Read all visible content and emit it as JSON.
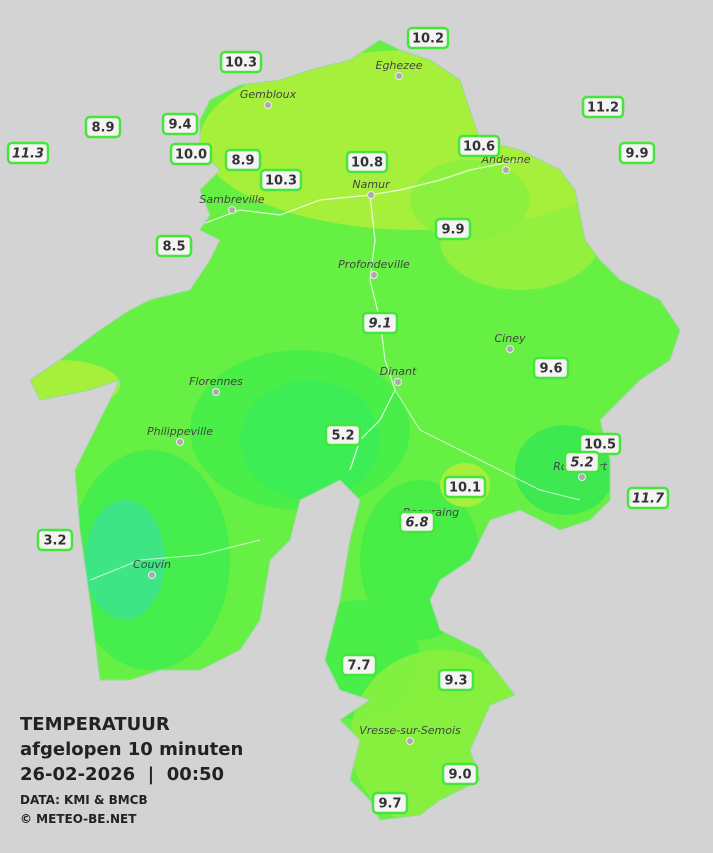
{
  "legend": {
    "title": "TEMPERATUUR",
    "subtitle": "afgelopen 10 minuten",
    "datetime": "26-02-2026  |  00:50",
    "source": "DATA: KMI & BMCB",
    "copyright": "© METEO-BE.NET"
  },
  "towns": [
    "Eghezee",
    "Gembloux",
    "Andenne",
    "Namur",
    "Sambreville",
    "Profondeville",
    "Ciney",
    "Dinant",
    "Florennes",
    "Philippeville",
    "Rochefort",
    "Beauraing",
    "Couvin",
    "Vresse-sur-Semois"
  ],
  "stations": [
    "10.2",
    "10.3",
    "11.2",
    "8.9",
    "9.4",
    "11.3",
    "10.0",
    "8.9",
    "10.6",
    "10.8",
    "9.9",
    "10.3",
    "9.9",
    "8.5",
    "9.1",
    "9.6",
    "5.2",
    "10.5",
    "5.2",
    "10.1",
    "11.7",
    "6.8",
    "3.2",
    "7.7",
    "9.3",
    "9.0",
    "9.7"
  ]
}
